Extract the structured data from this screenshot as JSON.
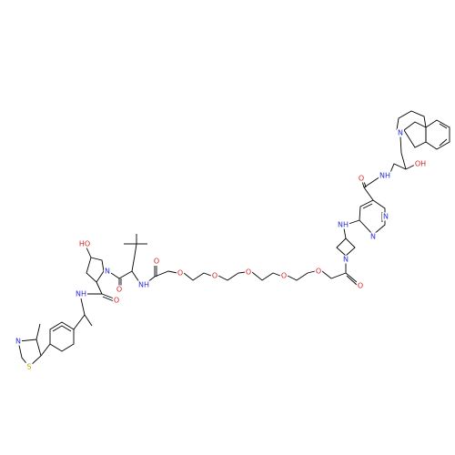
{
  "atoms": [
    "HO",
    "N",
    "O",
    "NH",
    "O",
    "O",
    "O",
    "O",
    "O",
    "O",
    "O",
    "N",
    "NH",
    "N",
    "N",
    "O",
    "NH",
    "OH",
    "N",
    "NH",
    "O",
    "N",
    "S"
  ]
}
